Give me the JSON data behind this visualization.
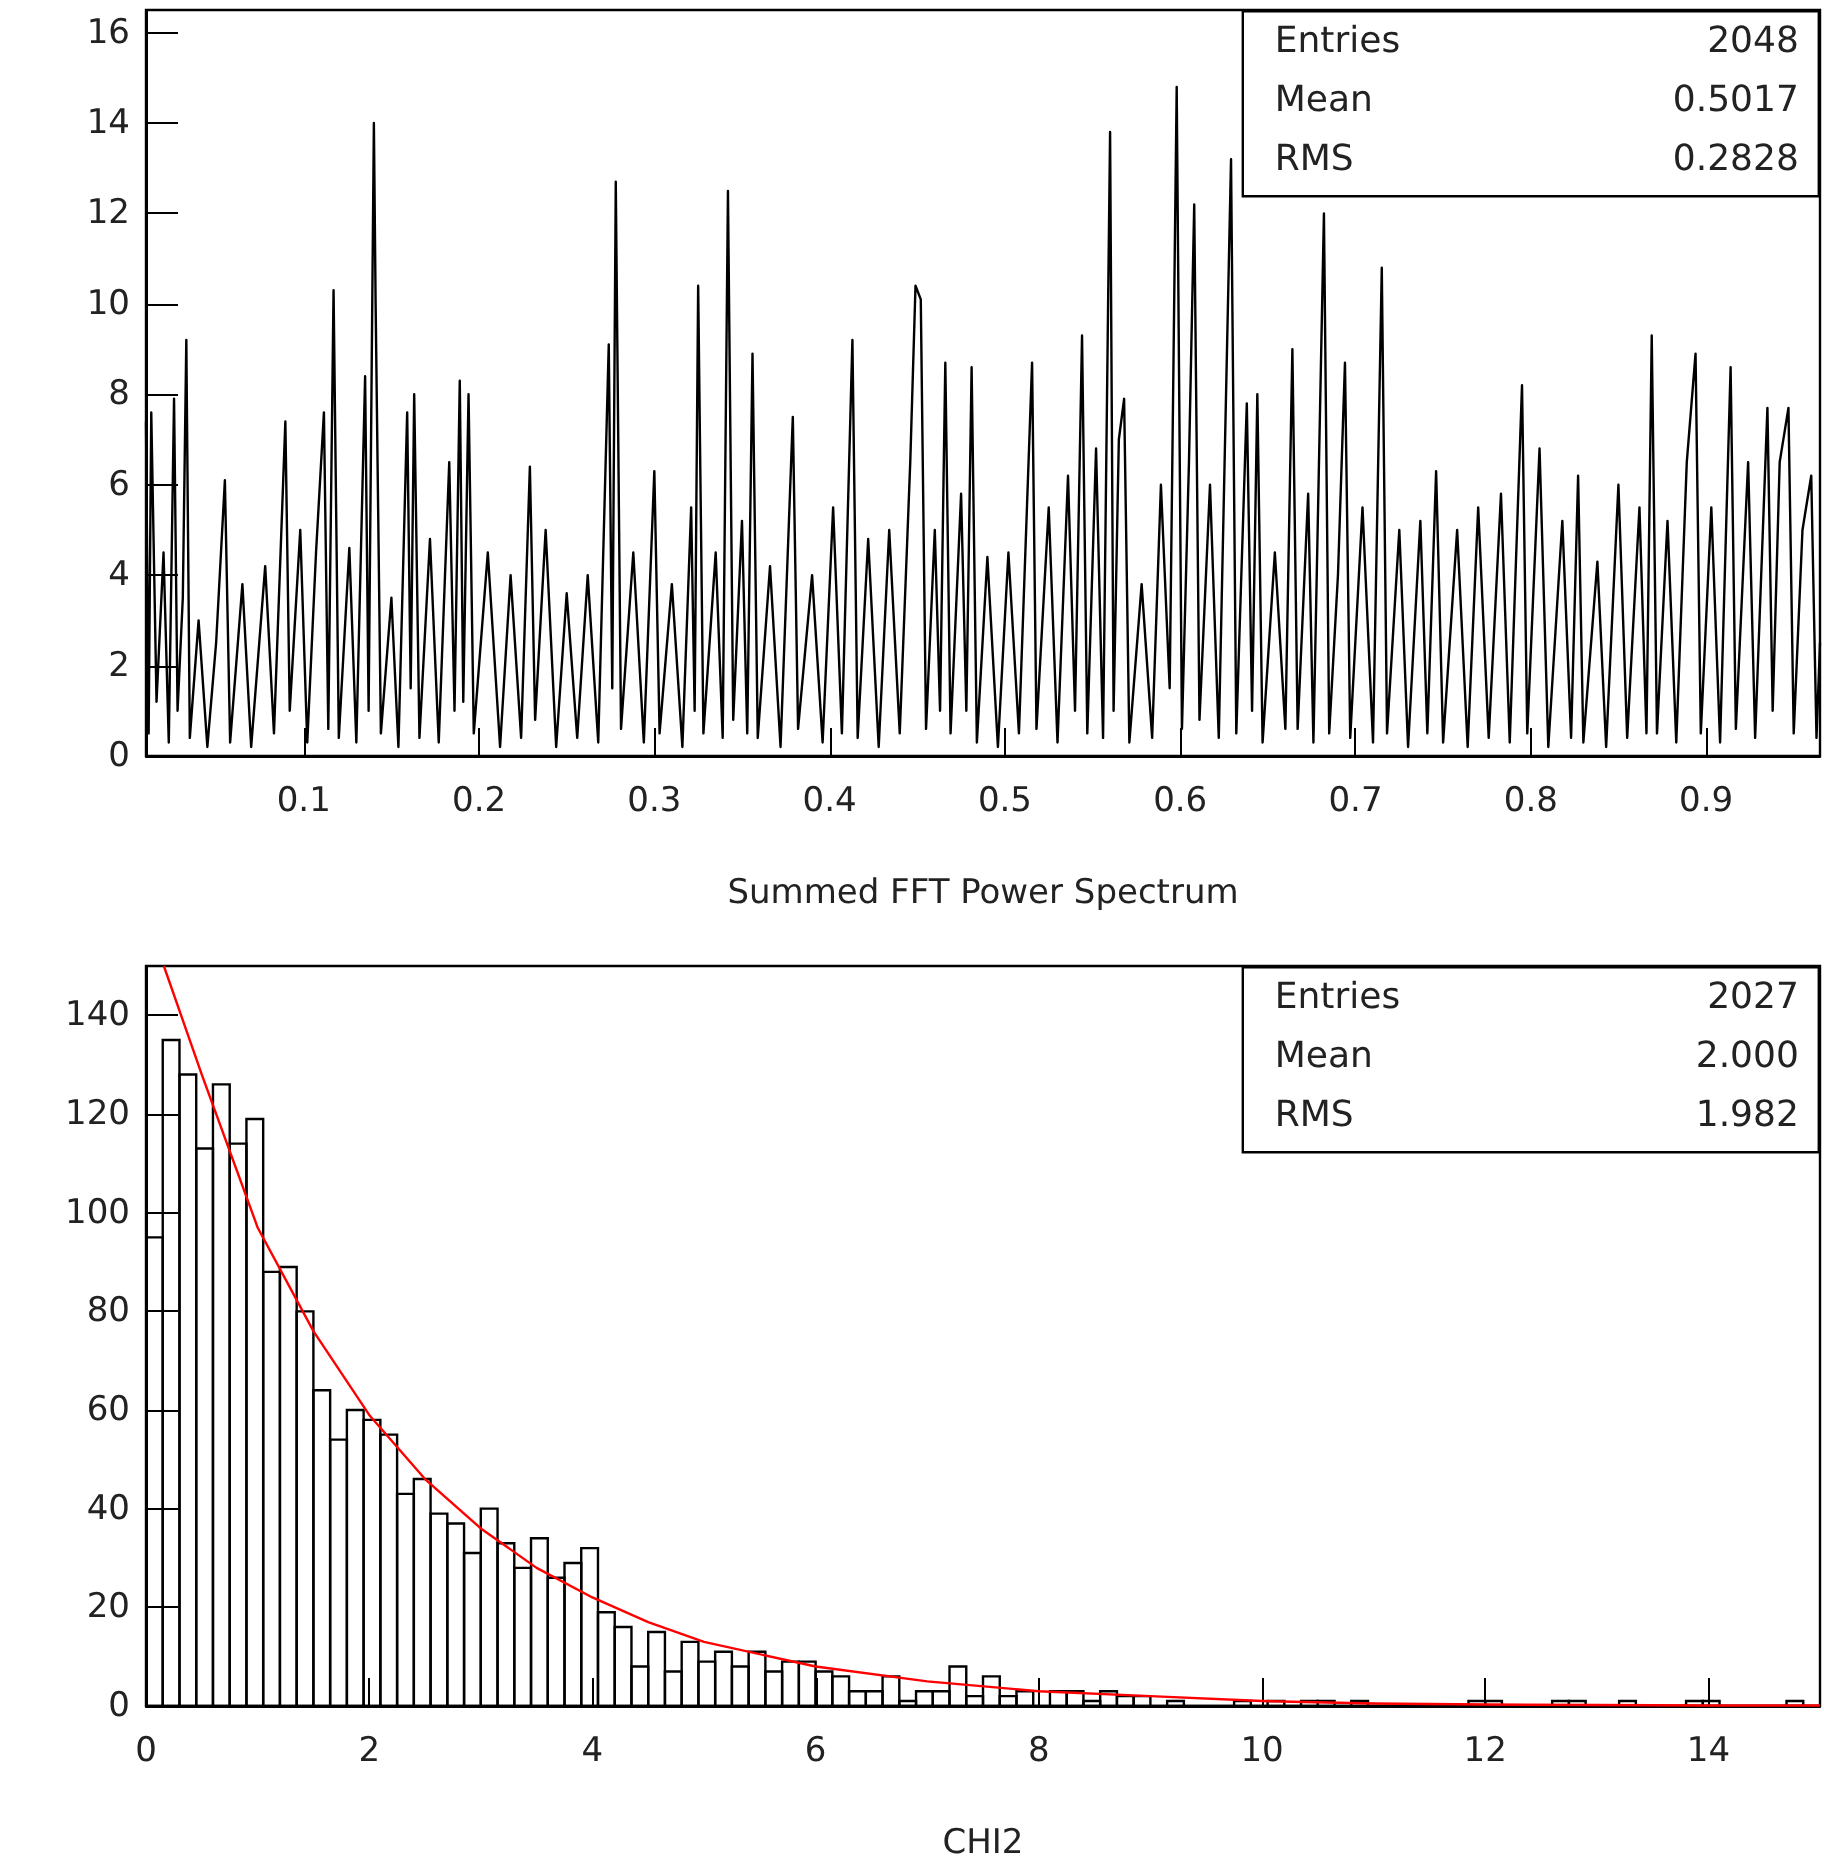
{
  "chart_data": [
    {
      "type": "line",
      "xlabel": "Summed FFT Power Spectrum",
      "xlim": [
        0.01,
        0.965
      ],
      "xticks": [
        0.1,
        0.2,
        0.3,
        0.4,
        0.5,
        0.6,
        0.7,
        0.8,
        0.9
      ],
      "ylim": [
        0,
        16.5
      ],
      "yticks": [
        0,
        2,
        4,
        6,
        8,
        10,
        12,
        14,
        16
      ],
      "annotations": [
        "Entries",
        "2048",
        "Mean",
        "0.5017",
        "RMS",
        "0.2828"
      ],
      "series": [
        {
          "color": "#000000",
          "x": [
            0.01,
            0.0115,
            0.013,
            0.016,
            0.02,
            0.023,
            0.026,
            0.028,
            0.031,
            0.033,
            0.035,
            0.04,
            0.045,
            0.05,
            0.055,
            0.058,
            0.065,
            0.07,
            0.078,
            0.083,
            0.0895,
            0.092,
            0.098,
            0.102,
            0.107,
            0.1115,
            0.114,
            0.117,
            0.12,
            0.126,
            0.13,
            0.135,
            0.137,
            0.14,
            0.141,
            0.144,
            0.15,
            0.154,
            0.159,
            0.161,
            0.163,
            0.166,
            0.172,
            0.177,
            0.183,
            0.186,
            0.189,
            0.191,
            0.194,
            0.197,
            0.205,
            0.212,
            0.218,
            0.224,
            0.229,
            0.232,
            0.238,
            0.244,
            0.25,
            0.256,
            0.262,
            0.268,
            0.274,
            0.276,
            0.278,
            0.281,
            0.288,
            0.294,
            0.3,
            0.303,
            0.31,
            0.316,
            0.321,
            0.323,
            0.325,
            0.328,
            0.335,
            0.339,
            0.342,
            0.345,
            0.35,
            0.353,
            0.356,
            0.359,
            0.366,
            0.372,
            0.379,
            0.382,
            0.39,
            0.396,
            0.402,
            0.407,
            0.413,
            0.416,
            0.422,
            0.428,
            0.434,
            0.44,
            0.446,
            0.449,
            0.452,
            0.455,
            0.46,
            0.463,
            0.466,
            0.469,
            0.475,
            0.478,
            0.481,
            0.484,
            0.49,
            0.496,
            0.502,
            0.508,
            0.5155,
            0.518,
            0.525,
            0.53,
            0.536,
            0.54,
            0.544,
            0.547,
            0.552,
            0.556,
            0.56,
            0.562,
            0.565,
            0.568,
            0.571,
            0.578,
            0.584,
            0.589,
            0.594,
            0.598,
            0.601,
            0.605,
            0.608,
            0.611,
            0.617,
            0.622,
            0.629,
            0.632,
            0.638,
            0.641,
            0.644,
            0.647,
            0.654,
            0.66,
            0.664,
            0.667,
            0.673,
            0.676,
            0.682,
            0.685,
            0.69,
            0.694,
            0.697,
            0.704,
            0.71,
            0.715,
            0.718,
            0.725,
            0.73,
            0.737,
            0.741,
            0.746,
            0.75,
            0.758,
            0.764,
            0.77,
            0.776,
            0.783,
            0.788,
            0.795,
            0.798,
            0.805,
            0.81,
            0.818,
            0.823,
            0.827,
            0.83,
            0.838,
            0.843,
            0.85,
            0.855,
            0.862,
            0.866,
            0.869,
            0.872,
            0.878,
            0.883,
            0.889,
            0.894,
            0.897,
            0.903,
            0.908,
            0.914,
            0.917,
            0.924,
            0.928,
            0.935,
            0.938,
            0.942,
            0.947,
            0.95,
            0.955,
            0.96,
            0.963,
            0.965
          ],
          "values": [
            7.4,
            0.5,
            7.6,
            1.2,
            4.5,
            0.3,
            7.9,
            1.0,
            3.5,
            9.2,
            0.4,
            3.0,
            0.2,
            2.5,
            6.1,
            0.3,
            3.8,
            0.2,
            4.2,
            0.5,
            7.4,
            1.0,
            5.0,
            0.3,
            4.5,
            7.6,
            0.6,
            10.3,
            0.4,
            4.6,
            0.3,
            8.4,
            1.0,
            14.0,
            10.0,
            0.5,
            3.5,
            0.2,
            7.6,
            1.5,
            8.0,
            0.4,
            4.8,
            0.3,
            6.5,
            1.0,
            8.3,
            1.2,
            8.0,
            0.5,
            4.5,
            0.2,
            4.0,
            0.4,
            6.4,
            0.8,
            5.0,
            0.2,
            3.6,
            0.4,
            4.0,
            0.3,
            9.1,
            1.5,
            12.7,
            0.6,
            4.5,
            0.3,
            6.3,
            0.5,
            3.8,
            0.2,
            5.5,
            1.0,
            10.4,
            0.5,
            4.5,
            0.4,
            12.5,
            0.8,
            5.2,
            0.5,
            8.9,
            0.4,
            4.2,
            0.2,
            7.5,
            0.6,
            4.0,
            0.3,
            5.5,
            0.5,
            9.2,
            0.4,
            4.8,
            0.2,
            5.0,
            0.5,
            6.5,
            10.4,
            10.1,
            0.6,
            5.0,
            1.0,
            8.7,
            0.5,
            5.8,
            1.0,
            8.6,
            0.3,
            4.4,
            0.2,
            4.5,
            0.5,
            8.7,
            0.6,
            5.5,
            0.3,
            6.2,
            1.0,
            9.3,
            0.5,
            6.8,
            0.4,
            13.8,
            1.0,
            7.0,
            7.9,
            0.3,
            3.8,
            0.4,
            6.0,
            1.5,
            14.8,
            0.6,
            6.5,
            12.2,
            0.8,
            6.0,
            0.4,
            13.2,
            0.5,
            7.8,
            1.0,
            8.0,
            0.3,
            4.5,
            0.6,
            9.0,
            0.6,
            5.8,
            0.3,
            12.0,
            0.5,
            4.0,
            8.7,
            0.4,
            5.5,
            0.3,
            10.8,
            0.5,
            5.0,
            0.2,
            5.2,
            0.5,
            6.3,
            0.3,
            5.0,
            0.2,
            5.5,
            0.4,
            5.8,
            0.3,
            8.2,
            0.5,
            6.8,
            0.2,
            5.2,
            0.4,
            6.2,
            0.3,
            4.3,
            0.2,
            6.0,
            0.4,
            5.5,
            0.5,
            9.3,
            0.5,
            5.2,
            0.3,
            6.5,
            8.9,
            0.5,
            5.5,
            0.3,
            8.6,
            0.6,
            6.5,
            0.4,
            7.7,
            1.0,
            6.5,
            7.7,
            0.5,
            5.0,
            6.2,
            0.4,
            2.5
          ]
        }
      ]
    },
    {
      "type": "histogram",
      "xlabel": "CHI2",
      "xlim": [
        0,
        15
      ],
      "xticks": [
        0,
        2,
        4,
        6,
        8,
        10,
        12,
        14
      ],
      "ylim": [
        0,
        150
      ],
      "yticks": [
        0,
        20,
        40,
        60,
        80,
        100,
        120,
        140
      ],
      "annotations": [
        "Entries",
        "2027",
        "Mean",
        "2.000",
        "RMS",
        "1.982"
      ],
      "bins": [
        0,
        0.15,
        0.3,
        0.45,
        0.6,
        0.75,
        0.9,
        1.05,
        1.2,
        1.35,
        1.5,
        1.65,
        1.8,
        1.95,
        2.1,
        2.25,
        2.4,
        2.55,
        2.7,
        2.85,
        3,
        3.15,
        3.3,
        3.45,
        3.6,
        3.75,
        3.9,
        4.05,
        4.2,
        4.35,
        4.5,
        4.65,
        4.8,
        4.95,
        5.1,
        5.25,
        5.4,
        5.55,
        5.7,
        5.85,
        6,
        6.15,
        6.3,
        6.45,
        6.6,
        6.75,
        6.9,
        7.05,
        7.2,
        7.35,
        7.5,
        7.65,
        7.8,
        7.95,
        8.1,
        8.25,
        8.4,
        8.55,
        8.7,
        8.85,
        9,
        9.15,
        9.3,
        9.45,
        9.6,
        9.75,
        9.9,
        10.05,
        10.2,
        10.35,
        10.5,
        10.65,
        10.8,
        10.95,
        11.1,
        11.25,
        11.4,
        11.55,
        11.7,
        11.85,
        12,
        12.15,
        12.3,
        12.45,
        12.6,
        12.75,
        12.9,
        13.05,
        13.2,
        13.35,
        13.5,
        13.65,
        13.8,
        13.95,
        14.1,
        14.25,
        14.4,
        14.55,
        14.7,
        14.85,
        15
      ],
      "series": [
        {
          "color": "#000000",
          "values": [
            95,
            135,
            128,
            113,
            126,
            114,
            119,
            88,
            89,
            80,
            64,
            54,
            60,
            58,
            55,
            43,
            46,
            39,
            37,
            31,
            40,
            33,
            28,
            34,
            26,
            29,
            32,
            19,
            16,
            8,
            15,
            7,
            13,
            9,
            11,
            8,
            11,
            7,
            9,
            9,
            7,
            6,
            3,
            3,
            6,
            1,
            3,
            3,
            8,
            2,
            6,
            2,
            3,
            0,
            3,
            3,
            1,
            3,
            2,
            2,
            0,
            1,
            0,
            0,
            0,
            1,
            0,
            1,
            0,
            1,
            1,
            0,
            1,
            0,
            0,
            0,
            0,
            0,
            0,
            1,
            1,
            0,
            0,
            0,
            1,
            1,
            0,
            0,
            1,
            0,
            0,
            0,
            1,
            1,
            0,
            0,
            0,
            0,
            1,
            0
          ]
        },
        {
          "type": "line",
          "color": "#ff0000",
          "x": [
            0.16,
            0.5,
            1,
            1.5,
            2,
            2.5,
            3,
            3.5,
            4,
            4.5,
            5,
            6,
            7,
            8,
            9,
            10,
            11,
            12,
            13,
            14,
            15
          ],
          "values": [
            150,
            128,
            97,
            76,
            59,
            46,
            36,
            28,
            22,
            17,
            13,
            8,
            5,
            3,
            2,
            1,
            0.5,
            0.3,
            0.2,
            0.1,
            0.1
          ]
        }
      ]
    }
  ]
}
